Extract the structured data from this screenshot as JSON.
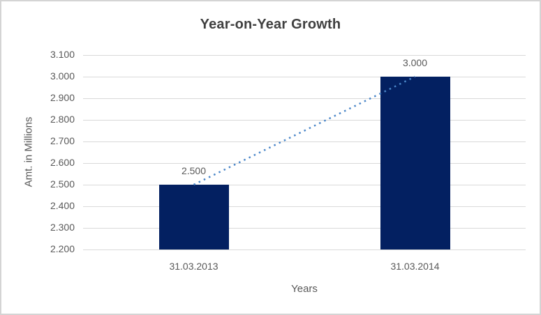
{
  "window": {
    "background": "#ffffff",
    "border_color": "#d4d4d4"
  },
  "chart_data": {
    "type": "bar",
    "title": "Year-on-Year Growth",
    "categories": [
      "31.03.2013",
      "31.03.2014"
    ],
    "values": [
      2.5,
      3.0
    ],
    "data_labels": [
      "2.500",
      "3.000"
    ],
    "xlabel": "Years",
    "ylabel": "Amt. in Millions",
    "ylim": [
      2.2,
      3.1
    ],
    "yticks": [
      "3.100",
      "3.000",
      "2.900",
      "2.800",
      "2.700",
      "2.600",
      "2.500",
      "2.400",
      "2.300",
      "2.200"
    ],
    "grid": true,
    "legend": "none",
    "trendline": {
      "style": "dotted",
      "connects": [
        2.5,
        3.0
      ]
    },
    "colors": {
      "bar": "#032061",
      "trendline": "#4a86c8",
      "gridline": "#d9d9d9",
      "title_text": "#404040",
      "axis_text": "#595959"
    }
  }
}
